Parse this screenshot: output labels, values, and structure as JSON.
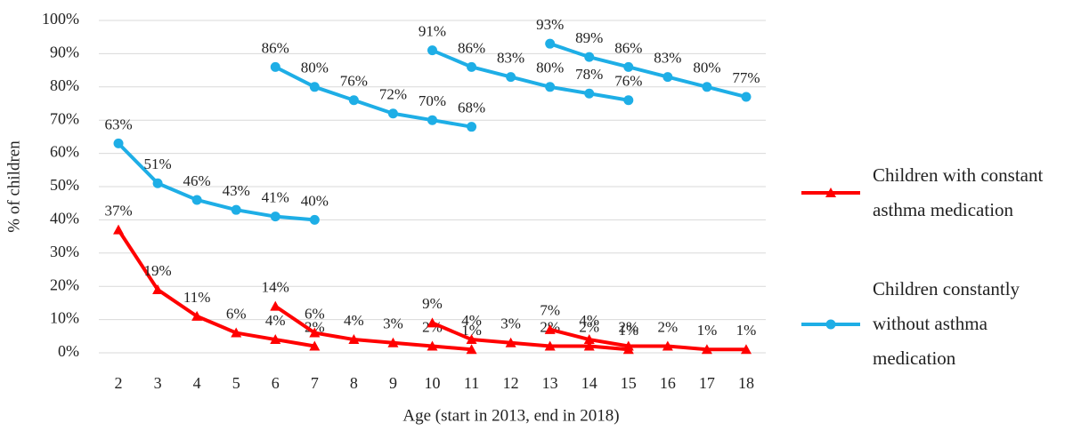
{
  "chart_data": {
    "type": "line",
    "xlabel": "Age (start in 2013, end in 2018)",
    "ylabel": "% of children",
    "xlim": [
      1.5,
      18.5
    ],
    "xticks": [
      2,
      3,
      4,
      5,
      6,
      7,
      8,
      9,
      10,
      11,
      12,
      13,
      14,
      15,
      16,
      17,
      18
    ],
    "ylim": [
      0,
      100
    ],
    "yticks": [
      {
        "value": 0,
        "label": "0%"
      },
      {
        "value": 10,
        "label": "10%"
      },
      {
        "value": 20,
        "label": "20%"
      },
      {
        "value": 30,
        "label": "30%"
      },
      {
        "value": 40,
        "label": "40%"
      },
      {
        "value": 50,
        "label": "50%"
      },
      {
        "value": 60,
        "label": "60%"
      },
      {
        "value": 70,
        "label": "70%"
      },
      {
        "value": 80,
        "label": "80%"
      },
      {
        "value": 90,
        "label": "90%"
      },
      {
        "value": 100,
        "label": "100%"
      }
    ],
    "grid": true,
    "legend": "right",
    "series": [
      {
        "name": "Children with constant asthma medication",
        "color": "#ff0000",
        "marker": "triangle",
        "cohorts": [
          {
            "x": [
              2,
              3,
              4,
              5,
              6,
              7
            ],
            "values": [
              37,
              19,
              11,
              6,
              4,
              2
            ],
            "value_labels": [
              "37%",
              "19%",
              "11%",
              "6%",
              "4%",
              "2%"
            ]
          },
          {
            "x": [
              6,
              7,
              8,
              9,
              10,
              11
            ],
            "values": [
              14,
              6,
              4,
              3,
              2,
              1
            ],
            "value_labels": [
              "14%",
              "6%",
              "4%",
              "3%",
              "2%",
              "1%"
            ]
          },
          {
            "x": [
              10,
              11,
              12,
              13,
              14,
              15
            ],
            "values": [
              9,
              4,
              3,
              2,
              2,
              1
            ],
            "value_labels": [
              "9%",
              "4%",
              "3%",
              "2%",
              "2%",
              "1%"
            ]
          },
          {
            "x": [
              13,
              14,
              15,
              16,
              17,
              18
            ],
            "values": [
              7,
              4,
              2,
              2,
              1,
              1
            ],
            "value_labels": [
              "7%",
              "4%",
              "2%",
              "2%",
              "1%",
              "1%"
            ]
          }
        ]
      },
      {
        "name": "Children constantly without asthma medication",
        "color": "#1eaee6",
        "marker": "circle",
        "cohorts": [
          {
            "x": [
              2,
              3,
              4,
              5,
              6,
              7
            ],
            "values": [
              63,
              51,
              46,
              43,
              41,
              40
            ],
            "value_labels": [
              "63%",
              "51%",
              "46%",
              "43%",
              "41%",
              "40%"
            ]
          },
          {
            "x": [
              6,
              7,
              8,
              9,
              10,
              11
            ],
            "values": [
              86,
              80,
              76,
              72,
              70,
              68
            ],
            "value_labels": [
              "86%",
              "80%",
              "76%",
              "72%",
              "70%",
              "68%"
            ]
          },
          {
            "x": [
              10,
              11,
              12,
              13,
              14,
              15
            ],
            "values": [
              91,
              86,
              83,
              80,
              78,
              76
            ],
            "value_labels": [
              "91%",
              "86%",
              "83%",
              "80%",
              "78%",
              "76%"
            ]
          },
          {
            "x": [
              13,
              14,
              15,
              16,
              17,
              18
            ],
            "values": [
              93,
              89,
              86,
              83,
              80,
              77
            ],
            "value_labels": [
              "93%",
              "89%",
              "86%",
              "83%",
              "80%",
              "77%"
            ]
          }
        ]
      }
    ]
  }
}
